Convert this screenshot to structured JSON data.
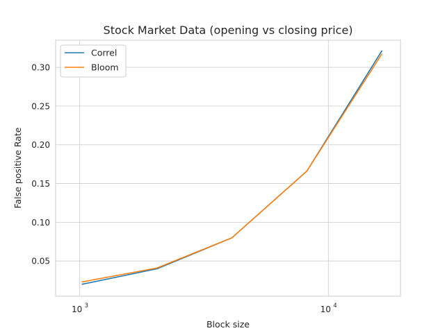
{
  "chart_data": {
    "type": "line",
    "title": "Stock Market Data (opening vs closing price)",
    "xlabel": "Block size",
    "ylabel": "False positive Rate",
    "xscale": "log",
    "xlim": [
      800,
      19500
    ],
    "ylim": [
      0.0045,
      0.335
    ],
    "x": [
      1024,
      2048,
      4096,
      8192,
      16384
    ],
    "xticks": [
      {
        "value": 1000,
        "base": "10",
        "exp": "3"
      },
      {
        "value": 10000,
        "base": "10",
        "exp": "4"
      }
    ],
    "yticks": [
      {
        "value": 0.05,
        "label": "0.05"
      },
      {
        "value": 0.1,
        "label": "0.10"
      },
      {
        "value": 0.15,
        "label": "0.15"
      },
      {
        "value": 0.2,
        "label": "0.20"
      },
      {
        "value": 0.25,
        "label": "0.25"
      },
      {
        "value": 0.3,
        "label": "0.30"
      }
    ],
    "grid": true,
    "legend_position": "top-left",
    "series": [
      {
        "name": "Correl",
        "color": "#1f77b4",
        "values": [
          0.02,
          0.04,
          0.08,
          0.166,
          0.321
        ]
      },
      {
        "name": "Bloom",
        "color": "#ff7f0e",
        "values": [
          0.023,
          0.041,
          0.08,
          0.166,
          0.317
        ]
      }
    ]
  }
}
